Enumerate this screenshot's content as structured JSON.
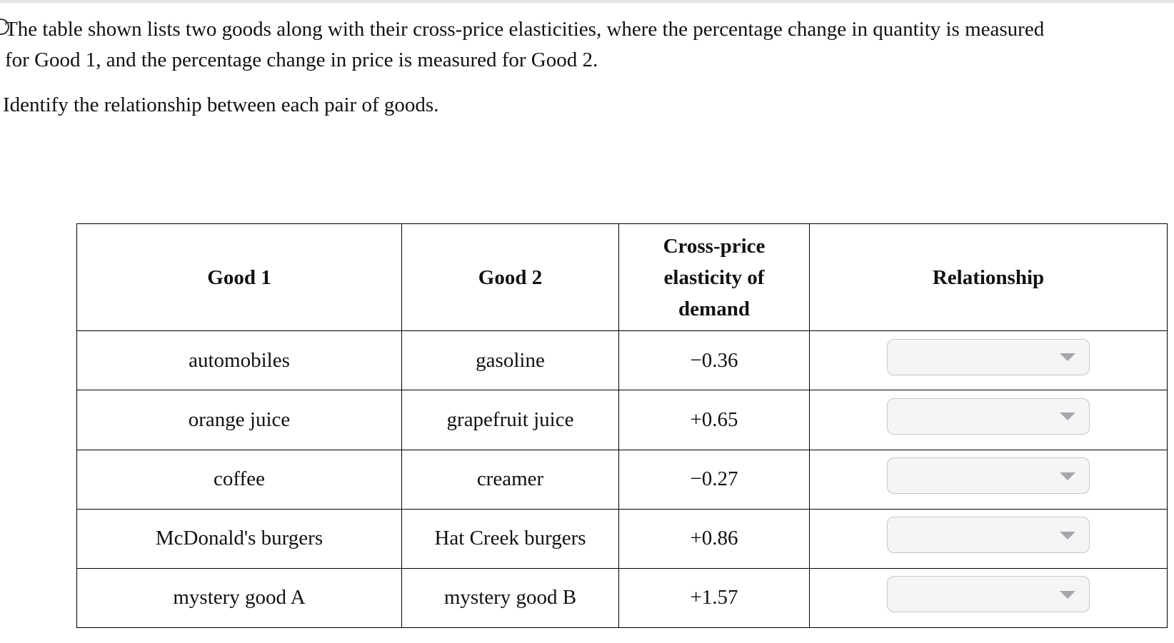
{
  "page": {
    "top_band_color": "#e8e8ea"
  },
  "question": {
    "intro_lines": [
      "The table shown lists two goods along with their cross-price elasticities, where the percentage change in quantity is measured",
      "for Good 1, and the percentage change in price is measured for Good 2."
    ],
    "instruction": "Identify the relationship between each pair of goods."
  },
  "table": {
    "headers": {
      "good1": "Good 1",
      "good2": "Good 2",
      "elasticity": "Cross-price elasticity of demand",
      "relationship": "Relationship"
    },
    "rows": [
      {
        "good1": "automobiles",
        "good2": "gasoline",
        "elasticity": "−0.36",
        "relationship_selected": ""
      },
      {
        "good1": "orange juice",
        "good2": "grapefruit juice",
        "elasticity": "+0.65",
        "relationship_selected": ""
      },
      {
        "good1": "coffee",
        "good2": "creamer",
        "elasticity": "−0.27",
        "relationship_selected": ""
      },
      {
        "good1": "McDonald's burgers",
        "good2": "Hat Creek burgers",
        "elasticity": "+0.86",
        "relationship_selected": ""
      },
      {
        "good1": "mystery good A",
        "good2": "mystery good B",
        "elasticity": "+1.57",
        "relationship_selected": ""
      }
    ]
  },
  "colors": {
    "text": "#111111",
    "table_border": "#000000",
    "dropdown_bg": "#f5f5f7",
    "dropdown_border": "#c6c6cb",
    "dropdown_caret": "#a6a6ab"
  }
}
